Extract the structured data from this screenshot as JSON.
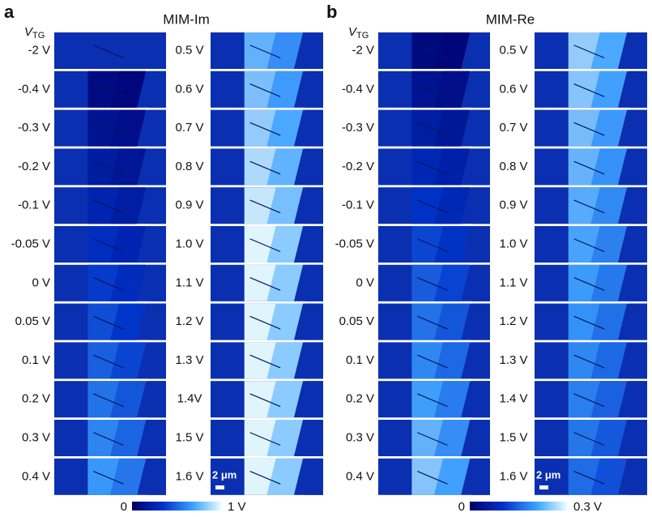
{
  "panels": [
    {
      "letter": "a",
      "title": "MIM-Im",
      "vtg_label": {
        "main": "V",
        "sub": "TG"
      },
      "left_labels": [
        "-2 V",
        "-0.4 V",
        "-0.3 V",
        "-0.2 V",
        "-0.1 V",
        "-0.05 V",
        "0 V",
        "0.05 V",
        "0.1 V",
        "0.2 V",
        "0.3 V",
        "0.4 V"
      ],
      "right_labels": [
        "0.5 V",
        "0.6 V",
        "0.7 V",
        "0.8 V",
        "0.9 V",
        "1.0 V",
        "1.1 V",
        "1.2 V",
        "1.3 V",
        "1.4V",
        "1.5 V",
        "1.6 V"
      ],
      "scale_bar": "2 μm",
      "colorbar": {
        "min_label": "0",
        "max_label": "1 V"
      }
    },
    {
      "letter": "b",
      "title": "MIM-Re",
      "vtg_label": {
        "main": "V",
        "sub": "TG"
      },
      "left_labels": [
        "-2 V",
        "-0.4 V",
        "-0.3 V",
        "-0.2 V",
        "-0.1 V",
        "-0.05 V",
        "0 V",
        "0.05 V",
        "0.1 V",
        "0.2 V",
        "0.3 V",
        "0.4 V"
      ],
      "right_labels": [
        "0.5 V",
        "0.6 V",
        "0.7 V",
        "0.8 V",
        "0.9 V",
        "1.0 V",
        "1.1 V",
        "1.2 V",
        "1.3 V",
        "1.4 V",
        "1.5 V",
        "1.6 V"
      ],
      "scale_bar": "2 μm",
      "colorbar": {
        "min_label": "0",
        "max_label": "0.3 V"
      }
    }
  ]
}
